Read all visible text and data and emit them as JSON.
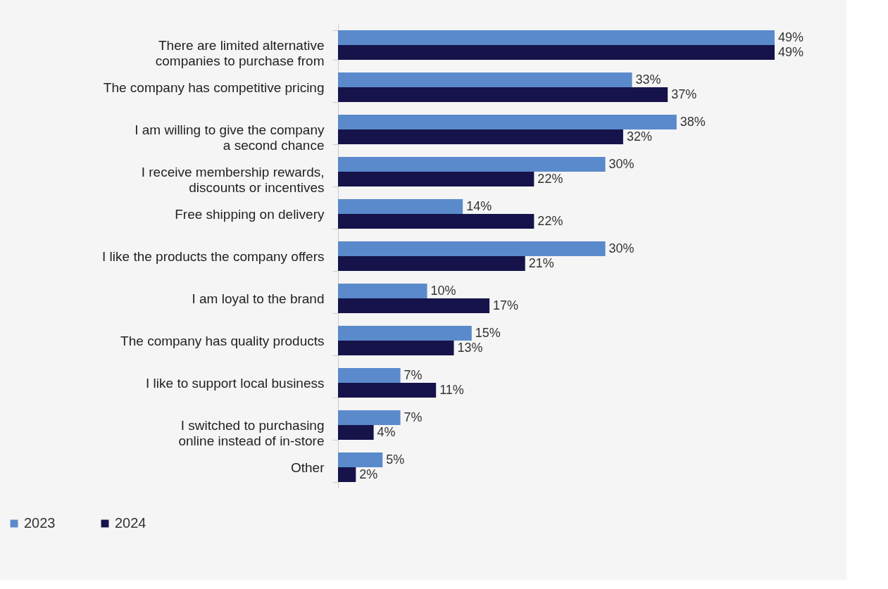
{
  "chart_data": {
    "type": "bar",
    "orientation": "horizontal",
    "legend": "bottom left",
    "categories": [
      "There are limited alternative\ncompanies to purchase from",
      "The company has competitive pricing",
      "I am willing to give the company\na second chance",
      "I receive membership rewards,\ndiscounts or incentives",
      "Free shipping on delivery",
      "I like the products the company offers",
      "I am loyal to the brand",
      "The company has quality products",
      "I like to support local business",
      "I switched to purchasing\nonline instead of in-store",
      "Other"
    ],
    "series": [
      {
        "name": "2023",
        "color": "#5a8acb",
        "values": [
          49,
          33,
          38,
          30,
          14,
          30,
          10,
          15,
          7,
          7,
          5
        ],
        "value_labels": [
          "49%",
          "33%",
          "38%",
          "30%",
          "14%",
          "30%",
          "10%",
          "15%",
          "7%",
          "7%",
          "5%"
        ]
      },
      {
        "name": "2024",
        "color": "#15134a",
        "values": [
          49,
          37,
          32,
          22,
          22,
          21,
          17,
          13,
          11,
          4,
          2
        ],
        "value_labels": [
          "49%",
          "37%",
          "32%",
          "22%",
          "22%",
          "21%",
          "17%",
          "13%",
          "11%",
          "4%",
          "2%"
        ]
      }
    ]
  }
}
